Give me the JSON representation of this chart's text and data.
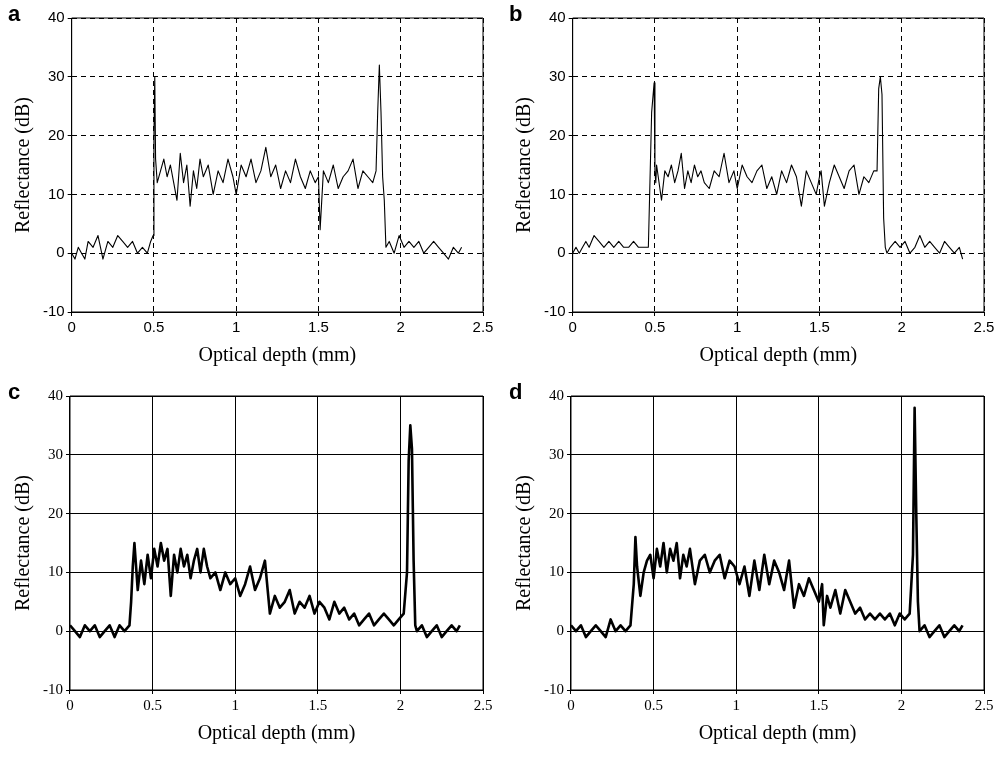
{
  "chart_data": [
    {
      "type": "line",
      "annotations": [
        "a"
      ],
      "xlabel": "Optical depth (mm)",
      "ylabel": "Reflectance (dB)",
      "xlim": [
        0,
        2.5
      ],
      "ylim": [
        -10,
        40
      ],
      "xticks": [
        0,
        0.5,
        1,
        1.5,
        2,
        2.5
      ],
      "yticks": [
        -10,
        0,
        10,
        20,
        30,
        40
      ],
      "grid": true,
      "legend": false,
      "marker": "none",
      "series": [
        {
          "color": "#000000",
          "x": [
            0,
            0.02,
            0.04,
            0.06,
            0.08,
            0.1,
            0.13,
            0.16,
            0.19,
            0.22,
            0.25,
            0.28,
            0.31,
            0.34,
            0.37,
            0.4,
            0.43,
            0.46,
            0.48,
            0.495,
            0.5,
            0.505,
            0.51,
            0.52,
            0.54,
            0.56,
            0.58,
            0.6,
            0.62,
            0.64,
            0.66,
            0.68,
            0.7,
            0.72,
            0.74,
            0.76,
            0.78,
            0.8,
            0.83,
            0.86,
            0.89,
            0.92,
            0.95,
            0.98,
            1.0,
            1.03,
            1.06,
            1.09,
            1.12,
            1.15,
            1.18,
            1.21,
            1.24,
            1.27,
            1.3,
            1.33,
            1.36,
            1.39,
            1.42,
            1.45,
            1.48,
            1.5,
            1.51,
            1.53,
            1.56,
            1.59,
            1.62,
            1.65,
            1.68,
            1.71,
            1.74,
            1.77,
            1.8,
            1.83,
            1.85,
            1.86,
            1.87,
            1.88,
            1.89,
            1.9,
            1.91,
            1.93,
            1.96,
            1.99,
            2.02,
            2.05,
            2.08,
            2.11,
            2.14,
            2.17,
            2.2,
            2.23,
            2.26,
            2.29,
            2.32,
            2.35,
            2.37
          ],
          "values": [
            0,
            -1,
            1,
            0,
            -1,
            2,
            1,
            3,
            -1,
            2,
            1,
            3,
            2,
            1,
            2,
            0,
            1,
            0,
            2,
            3,
            20,
            30,
            16,
            12,
            14,
            16,
            13,
            15,
            12,
            9,
            17,
            12,
            15,
            8,
            14,
            11,
            16,
            13,
            15,
            10,
            14,
            12,
            16,
            13,
            10,
            15,
            13,
            16,
            12,
            14,
            18,
            13,
            15,
            11,
            14,
            12,
            16,
            13,
            11,
            14,
            12,
            13,
            4,
            14,
            12,
            15,
            11,
            13,
            14,
            16,
            11,
            14,
            13,
            12,
            14,
            24,
            32,
            24,
            13,
            9,
            1,
            2,
            0,
            3,
            1,
            2,
            1,
            2,
            0,
            1,
            2,
            1,
            0,
            -1,
            1,
            0,
            1
          ]
        }
      ]
    },
    {
      "type": "line",
      "annotations": [
        "b"
      ],
      "xlabel": "Optical depth (mm)",
      "ylabel": "Reflectance (dB)",
      "xlim": [
        0,
        2.5
      ],
      "ylim": [
        -10,
        40
      ],
      "xticks": [
        0,
        0.5,
        1,
        1.5,
        2,
        2.5
      ],
      "yticks": [
        -10,
        0,
        10,
        20,
        30,
        40
      ],
      "grid": true,
      "legend": false,
      "marker": "none",
      "series": [
        {
          "color": "#000000",
          "x": [
            0,
            0.02,
            0.04,
            0.06,
            0.08,
            0.1,
            0.13,
            0.16,
            0.19,
            0.22,
            0.25,
            0.28,
            0.31,
            0.34,
            0.37,
            0.4,
            0.43,
            0.46,
            0.48,
            0.495,
            0.5,
            0.505,
            0.51,
            0.52,
            0.54,
            0.56,
            0.58,
            0.6,
            0.62,
            0.64,
            0.66,
            0.68,
            0.7,
            0.72,
            0.74,
            0.76,
            0.78,
            0.8,
            0.83,
            0.86,
            0.89,
            0.92,
            0.95,
            0.98,
            1.0,
            1.03,
            1.06,
            1.09,
            1.12,
            1.15,
            1.18,
            1.21,
            1.24,
            1.27,
            1.3,
            1.33,
            1.36,
            1.39,
            1.42,
            1.45,
            1.48,
            1.5,
            1.51,
            1.53,
            1.56,
            1.59,
            1.62,
            1.65,
            1.68,
            1.71,
            1.74,
            1.77,
            1.8,
            1.83,
            1.85,
            1.86,
            1.87,
            1.88,
            1.89,
            1.9,
            1.91,
            1.93,
            1.96,
            1.99,
            2.02,
            2.05,
            2.08,
            2.11,
            2.14,
            2.17,
            2.2,
            2.23,
            2.26,
            2.29,
            2.32,
            2.35,
            2.37
          ],
          "values": [
            0,
            1,
            0,
            1,
            2,
            1,
            3,
            2,
            1,
            2,
            1,
            2,
            1,
            1,
            2,
            1,
            1,
            1,
            24,
            29,
            14,
            12,
            15,
            13,
            9,
            14,
            13,
            15,
            12,
            14,
            17,
            11,
            14,
            12,
            15,
            13,
            14,
            12,
            11,
            14,
            13,
            17,
            12,
            14,
            11,
            15,
            13,
            12,
            14,
            15,
            11,
            13,
            10,
            14,
            12,
            15,
            13,
            8,
            14,
            12,
            10,
            13,
            14,
            8,
            12,
            15,
            13,
            11,
            14,
            15,
            10,
            13,
            12,
            14,
            14,
            28,
            30,
            27,
            6,
            1,
            0,
            1,
            2,
            1,
            2,
            0,
            1,
            3,
            1,
            2,
            1,
            0,
            2,
            1,
            0,
            1,
            -1
          ]
        }
      ]
    },
    {
      "type": "line",
      "annotations": [
        "c"
      ],
      "xlabel": "Optical depth (mm)",
      "ylabel": "Reflectance (dB)",
      "xlim": [
        0,
        2.5
      ],
      "ylim": [
        -10,
        40
      ],
      "xticks": [
        0,
        0.5,
        1,
        1.5,
        2,
        2.5
      ],
      "yticks": [
        -10,
        0,
        10,
        20,
        30,
        40
      ],
      "grid": true,
      "legend": false,
      "marker": "none",
      "series": [
        {
          "color": "#000000",
          "x": [
            0,
            0.03,
            0.06,
            0.09,
            0.12,
            0.15,
            0.18,
            0.21,
            0.24,
            0.27,
            0.3,
            0.33,
            0.36,
            0.37,
            0.38,
            0.39,
            0.41,
            0.43,
            0.45,
            0.47,
            0.49,
            0.51,
            0.53,
            0.55,
            0.57,
            0.59,
            0.61,
            0.63,
            0.65,
            0.67,
            0.69,
            0.71,
            0.73,
            0.75,
            0.77,
            0.79,
            0.81,
            0.83,
            0.85,
            0.88,
            0.91,
            0.94,
            0.97,
            1.0,
            1.03,
            1.06,
            1.09,
            1.12,
            1.15,
            1.18,
            1.21,
            1.24,
            1.27,
            1.3,
            1.33,
            1.36,
            1.39,
            1.42,
            1.45,
            1.48,
            1.51,
            1.54,
            1.57,
            1.6,
            1.63,
            1.66,
            1.69,
            1.72,
            1.75,
            1.78,
            1.81,
            1.84,
            1.87,
            1.9,
            1.93,
            1.96,
            1.99,
            2.02,
            2.04,
            2.05,
            2.06,
            2.07,
            2.08,
            2.09,
            2.1,
            2.13,
            2.16,
            2.19,
            2.22,
            2.25,
            2.28,
            2.31,
            2.34,
            2.36
          ],
          "values": [
            1,
            0,
            -1,
            1,
            0,
            1,
            -1,
            0,
            1,
            -1,
            1,
            0,
            1,
            5,
            11,
            15,
            7,
            12,
            8,
            13,
            9,
            14,
            11,
            15,
            12,
            14,
            6,
            13,
            10,
            14,
            11,
            13,
            9,
            12,
            14,
            10,
            14,
            11,
            9,
            10,
            7,
            10,
            8,
            9,
            6,
            8,
            11,
            7,
            9,
            12,
            3,
            6,
            4,
            5,
            7,
            3,
            5,
            4,
            6,
            3,
            5,
            4,
            2,
            5,
            3,
            4,
            2,
            3,
            1,
            2,
            3,
            1,
            2,
            3,
            2,
            1,
            2,
            3,
            10,
            29,
            35,
            31,
            12,
            1,
            0,
            1,
            -1,
            0,
            1,
            -1,
            0,
            1,
            0,
            1
          ]
        }
      ]
    },
    {
      "type": "line",
      "annotations": [
        "d"
      ],
      "xlabel": "Optical depth (mm)",
      "ylabel": "Reflectance (dB)",
      "xlim": [
        0,
        2.5
      ],
      "ylim": [
        -10,
        40
      ],
      "xticks": [
        0,
        0.5,
        1,
        1.5,
        2,
        2.5
      ],
      "yticks": [
        -10,
        0,
        10,
        20,
        30,
        40
      ],
      "grid": true,
      "legend": false,
      "marker": "none",
      "series": [
        {
          "color": "#000000",
          "x": [
            0,
            0.03,
            0.06,
            0.09,
            0.12,
            0.15,
            0.18,
            0.21,
            0.24,
            0.27,
            0.3,
            0.33,
            0.36,
            0.38,
            0.39,
            0.4,
            0.42,
            0.44,
            0.46,
            0.48,
            0.5,
            0.52,
            0.54,
            0.56,
            0.58,
            0.6,
            0.62,
            0.64,
            0.66,
            0.68,
            0.7,
            0.72,
            0.75,
            0.78,
            0.81,
            0.84,
            0.87,
            0.9,
            0.93,
            0.96,
            0.99,
            1.02,
            1.05,
            1.08,
            1.11,
            1.14,
            1.17,
            1.2,
            1.23,
            1.26,
            1.29,
            1.32,
            1.35,
            1.38,
            1.41,
            1.44,
            1.47,
            1.5,
            1.52,
            1.53,
            1.55,
            1.57,
            1.6,
            1.63,
            1.66,
            1.69,
            1.72,
            1.75,
            1.78,
            1.81,
            1.84,
            1.87,
            1.9,
            1.93,
            1.96,
            1.99,
            2.02,
            2.05,
            2.06,
            2.07,
            2.08,
            2.09,
            2.1,
            2.11,
            2.14,
            2.17,
            2.2,
            2.23,
            2.26,
            2.29,
            2.32,
            2.35,
            2.37
          ],
          "values": [
            1,
            0,
            1,
            -1,
            0,
            1,
            0,
            -1,
            2,
            0,
            1,
            0,
            1,
            8,
            16,
            11,
            6,
            10,
            12,
            13,
            9,
            14,
            11,
            15,
            10,
            14,
            12,
            15,
            9,
            13,
            11,
            14,
            8,
            12,
            13,
            10,
            12,
            13,
            9,
            12,
            11,
            8,
            11,
            6,
            12,
            7,
            13,
            8,
            12,
            10,
            7,
            12,
            4,
            8,
            6,
            9,
            7,
            5,
            8,
            1,
            6,
            4,
            7,
            3,
            7,
            5,
            3,
            4,
            2,
            3,
            2,
            3,
            2,
            3,
            1,
            3,
            2,
            3,
            8,
            13,
            38,
            20,
            5,
            0,
            1,
            -1,
            0,
            1,
            -1,
            0,
            1,
            0,
            1
          ]
        }
      ]
    }
  ]
}
